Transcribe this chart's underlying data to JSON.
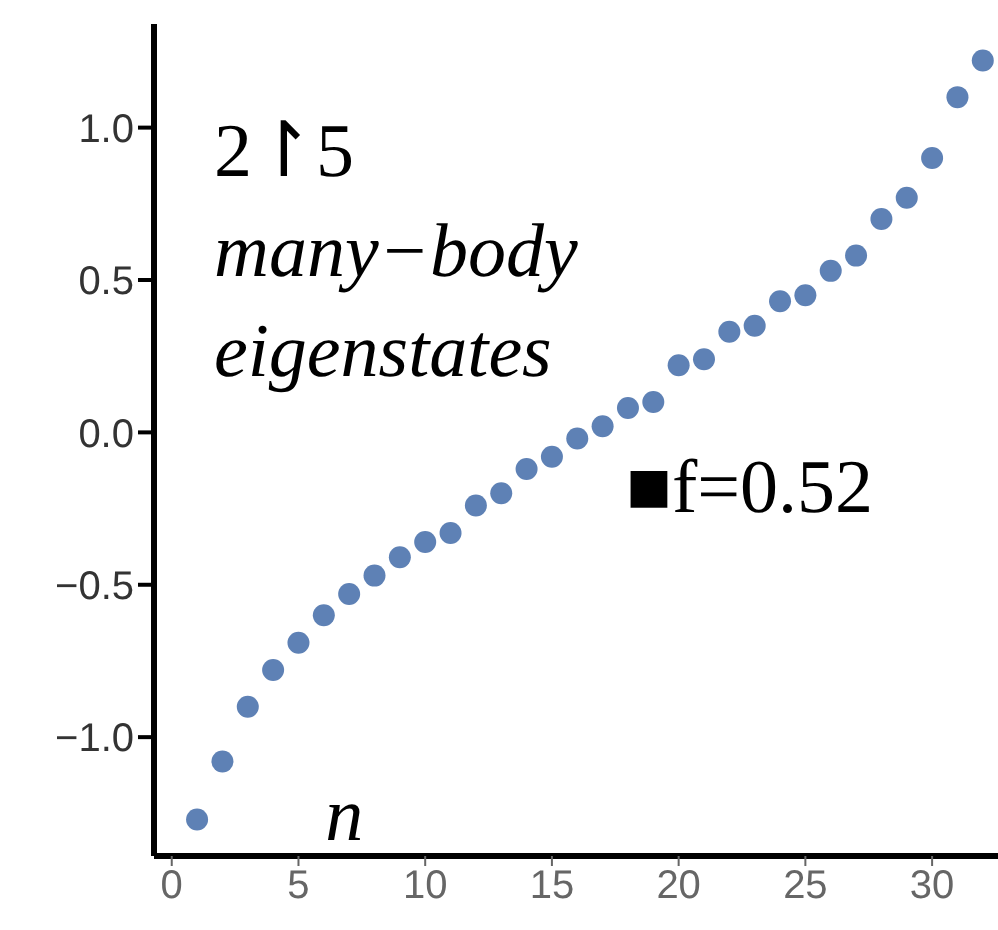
{
  "chart_data": {
    "type": "scatter",
    "xlabel": "n",
    "x": [
      1,
      2,
      3,
      4,
      5,
      6,
      7,
      8,
      9,
      10,
      11,
      12,
      13,
      14,
      15,
      16,
      17,
      18,
      19,
      20,
      21,
      22,
      23,
      24,
      25,
      26,
      27,
      28,
      29,
      30,
      31,
      32
    ],
    "series": [
      {
        "color": "#5e81b5",
        "values": [
          -1.27,
          -1.08,
          -0.9,
          -0.78,
          -0.69,
          -0.6,
          -0.53,
          -0.47,
          -0.41,
          -0.36,
          -0.33,
          -0.24,
          -0.2,
          -0.12,
          -0.08,
          -0.02,
          0.02,
          0.08,
          0.1,
          0.22,
          0.24,
          0.33,
          0.35,
          0.43,
          0.45,
          0.53,
          0.58,
          0.7,
          0.77,
          0.9,
          1.1,
          1.22
        ]
      }
    ],
    "xlim": [
      -0.7,
      32.6
    ],
    "xticks": [
      0,
      5,
      10,
      15,
      20,
      25,
      30
    ],
    "ylim": [
      -1.39,
      1.34
    ],
    "yticks": [
      {
        "value": -1,
        "label": "−1.0"
      },
      {
        "value": -0.5,
        "label": "−0.5"
      },
      {
        "value": 0,
        "label": "0.0"
      },
      {
        "value": 0.5,
        "label": "0.5"
      },
      {
        "value": 1,
        "label": "1.0"
      }
    ],
    "annotations": [
      "2↾5",
      "many−body",
      "eigenstates",
      "■f=0.52"
    ],
    "marker": "circle",
    "grid": false
  }
}
